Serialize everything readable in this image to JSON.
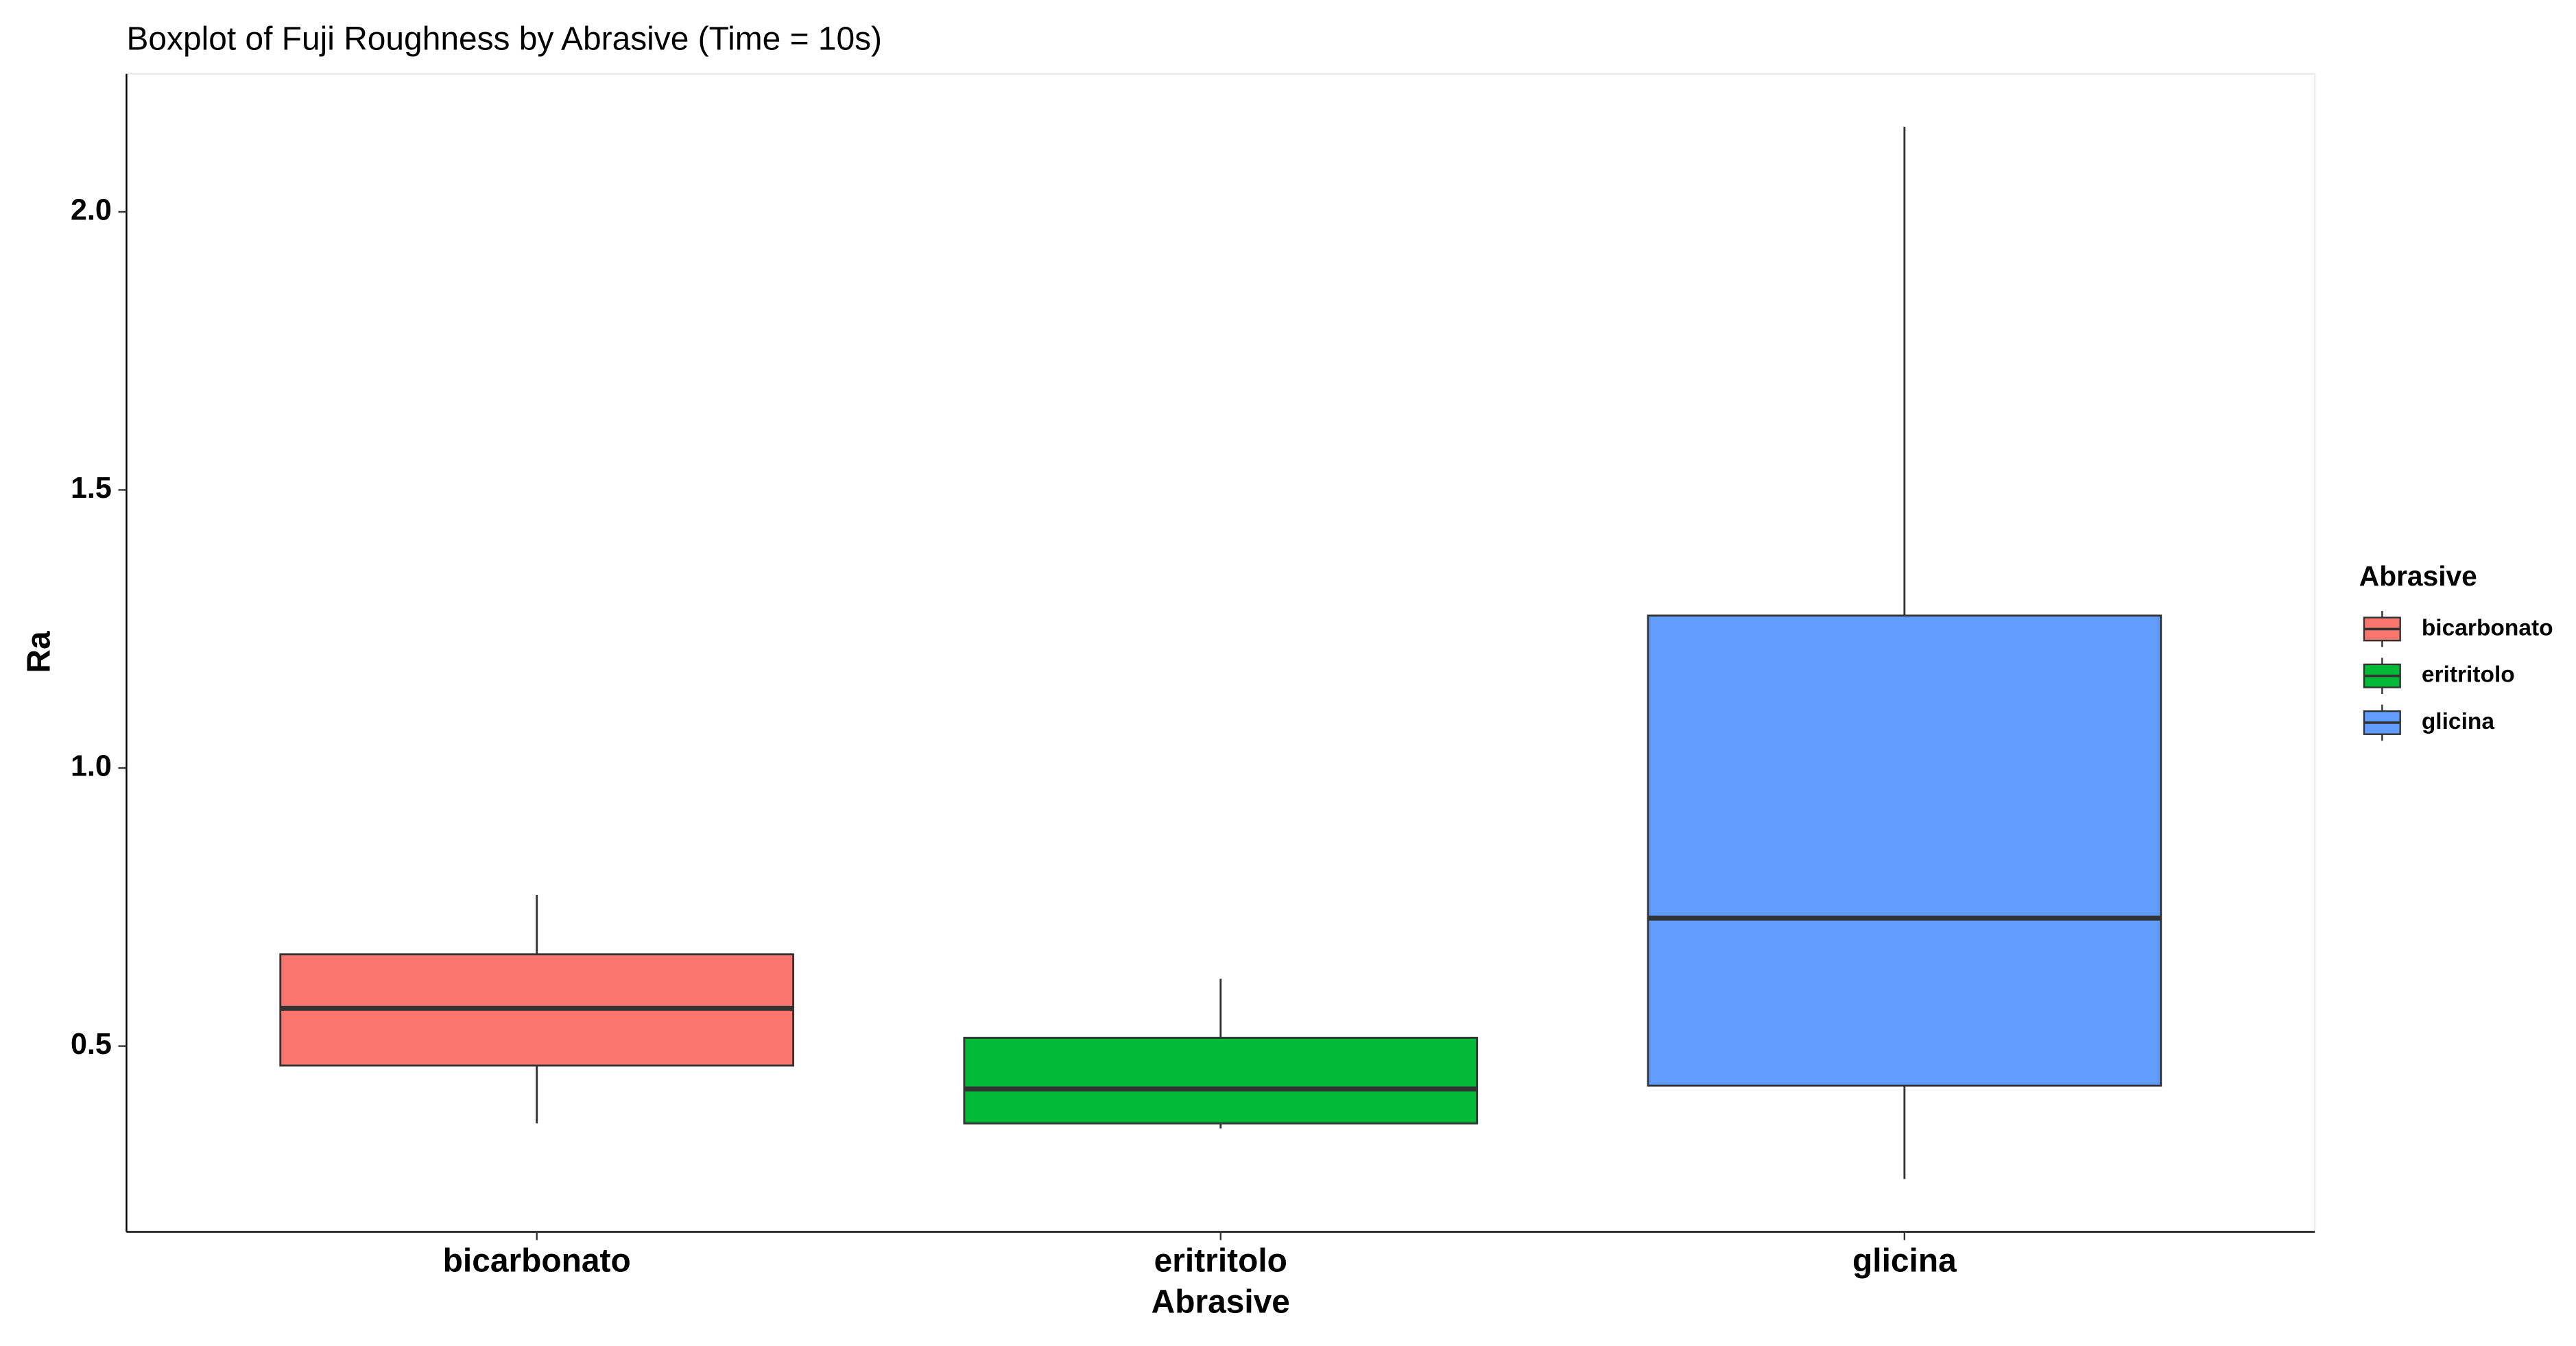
{
  "chart_data": {
    "type": "box",
    "title": "Boxplot of Fuji Roughness by Abrasive (Time = 10s)",
    "x_label": "Abrasive",
    "y_label": "Ra",
    "legend_title": "Abrasive",
    "legend_position": "right",
    "grid": false,
    "categories": [
      "bicarbonato",
      "eritritolo",
      "glicina"
    ],
    "boxes": [
      {
        "name": "bicarbonato",
        "color": "#f8766d",
        "min": 0.361,
        "q1": 0.465,
        "median": 0.568,
        "q3": 0.665,
        "max": 0.772
      },
      {
        "name": "eritritolo",
        "color": "#00ba38",
        "min": 0.352,
        "q1": 0.361,
        "median": 0.423,
        "q3": 0.515,
        "max": 0.621
      },
      {
        "name": "glicina",
        "color": "#619cff",
        "min": 0.261,
        "q1": 0.429,
        "median": 0.73,
        "q3": 1.274,
        "max": 2.153
      }
    ],
    "ylim": [
      0.166,
      2.248
    ],
    "yticks": [
      0.5,
      {
        "value": 1,
        "label": "1.0"
      },
      1.5,
      {
        "value": 2,
        "label": "2.0"
      }
    ]
  }
}
